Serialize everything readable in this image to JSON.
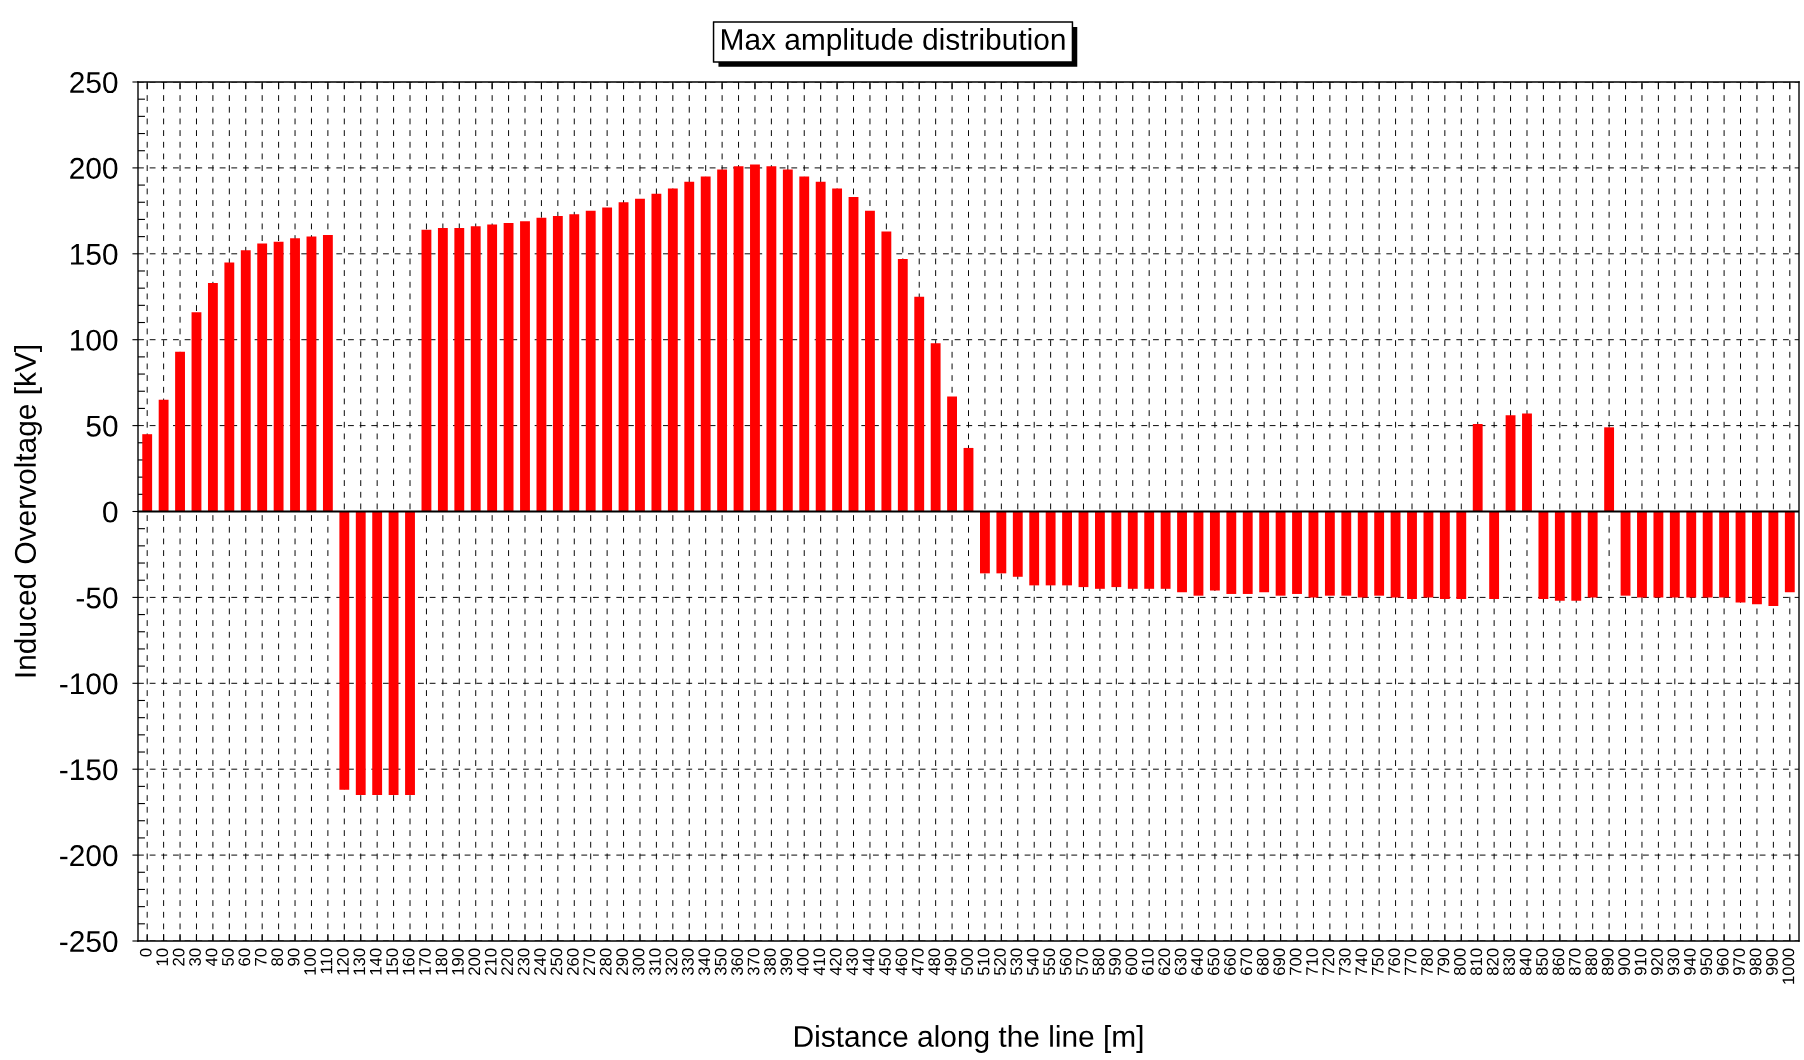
{
  "chart_data": {
    "type": "bar",
    "title": "Max amplitude distribution",
    "xlabel": "Distance along the line [m]",
    "ylabel": "Induced Overvoltage [kV]",
    "categories": [
      "0",
      "10",
      "20",
      "30",
      "40",
      "50",
      "60",
      "70",
      "80",
      "90",
      "100",
      "110",
      "120",
      "130",
      "140",
      "150",
      "160",
      "170",
      "180",
      "190",
      "200",
      "210",
      "220",
      "230",
      "240",
      "250",
      "260",
      "270",
      "280",
      "290",
      "300",
      "310",
      "320",
      "330",
      "340",
      "350",
      "360",
      "370",
      "380",
      "390",
      "400",
      "410",
      "420",
      "430",
      "440",
      "450",
      "460",
      "470",
      "480",
      "490",
      "500",
      "510",
      "520",
      "530",
      "540",
      "550",
      "560",
      "570",
      "580",
      "590",
      "600",
      "610",
      "620",
      "630",
      "640",
      "650",
      "660",
      "670",
      "680",
      "690",
      "700",
      "710",
      "720",
      "730",
      "740",
      "750",
      "760",
      "770",
      "780",
      "790",
      "800",
      "810",
      "820",
      "830",
      "840",
      "850",
      "860",
      "870",
      "880",
      "890",
      "900",
      "910",
      "920",
      "930",
      "940",
      "950",
      "960",
      "970",
      "980",
      "990",
      "1000"
    ],
    "values": [
      45,
      65,
      93,
      116,
      133,
      145,
      152,
      156,
      157,
      159,
      160,
      161,
      -162,
      -165,
      -165,
      -165,
      -165,
      164,
      165,
      165,
      166,
      167,
      168,
      169,
      171,
      172,
      173,
      175,
      177,
      180,
      182,
      185,
      188,
      192,
      195,
      199,
      201,
      202,
      201,
      199,
      195,
      192,
      188,
      183,
      175,
      163,
      147,
      125,
      98,
      67,
      37,
      -36,
      -36,
      -38,
      -43,
      -43,
      -43,
      -44,
      -45,
      -44,
      -45,
      -45,
      -45,
      -47,
      -49,
      -46,
      -48,
      -48,
      -47,
      -49,
      -48,
      -50,
      -49,
      -49,
      -50,
      -49,
      -50,
      -51,
      -50,
      -51,
      -51,
      51,
      -51,
      56,
      57,
      -51,
      -52,
      -52,
      -50,
      49,
      -49,
      -50,
      -50,
      -50,
      -50,
      -50,
      -50,
      -53,
      -54,
      -55,
      -47
    ],
    "color": "#ff0000",
    "ylim": [
      -250,
      250
    ],
    "yticks": [
      -250,
      {
        "value": -240,
        "label": null
      },
      {
        "value": -230,
        "label": null
      },
      {
        "value": -220,
        "label": null
      },
      {
        "value": -210,
        "label": null
      },
      -200,
      {
        "value": -190,
        "label": null
      },
      {
        "value": -180,
        "label": null
      },
      {
        "value": -170,
        "label": null
      },
      {
        "value": -160,
        "label": null
      },
      -150,
      {
        "value": -140,
        "label": null
      },
      {
        "value": -130,
        "label": null
      },
      {
        "value": -120,
        "label": null
      },
      {
        "value": -110,
        "label": null
      },
      -100,
      {
        "value": -90,
        "label": null
      },
      {
        "value": -80,
        "label": null
      },
      {
        "value": -70,
        "label": null
      },
      {
        "value": -60,
        "label": null
      },
      -50,
      {
        "value": -40,
        "label": null
      },
      {
        "value": -30,
        "label": null
      },
      {
        "value": -20,
        "label": null
      },
      {
        "value": -10,
        "label": null
      },
      0,
      {
        "value": 10,
        "label": null
      },
      {
        "value": 20,
        "label": null
      },
      {
        "value": 30,
        "label": null
      },
      {
        "value": 40,
        "label": null
      },
      50,
      {
        "value": 60,
        "label": null
      },
      {
        "value": 70,
        "label": null
      },
      {
        "value": 80,
        "label": null
      },
      {
        "value": 90,
        "label": null
      },
      100,
      {
        "value": 110,
        "label": null
      },
      {
        "value": 120,
        "label": null
      },
      {
        "value": 130,
        "label": null
      },
      {
        "value": 140,
        "label": null
      },
      150,
      {
        "value": 160,
        "label": null
      },
      {
        "value": 170,
        "label": null
      },
      {
        "value": 180,
        "label": null
      },
      {
        "value": 190,
        "label": null
      },
      200,
      {
        "value": 210,
        "label": null
      },
      {
        "value": 220,
        "label": null
      },
      {
        "value": 230,
        "label": null
      },
      {
        "value": 240,
        "label": null
      },
      250
    ],
    "grid": true,
    "ref_lines": [
      {
        "axis": "y",
        "value": 0,
        "color": "#000000",
        "line_style": "solid"
      }
    ]
  }
}
